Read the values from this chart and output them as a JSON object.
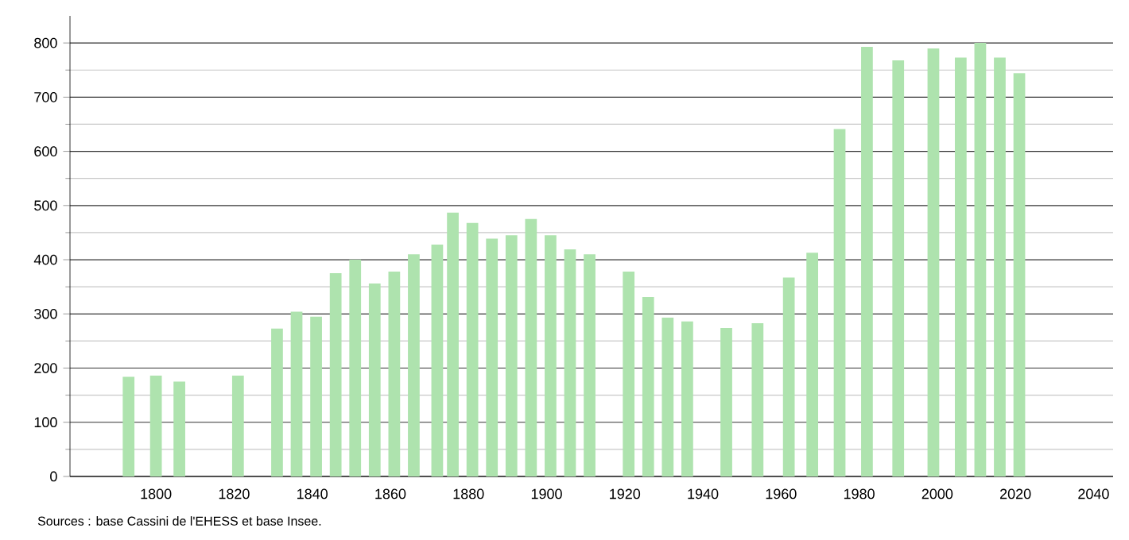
{
  "chart_data": {
    "type": "bar",
    "color": "#aee3ae",
    "x": [
      1793,
      1800,
      1806,
      1821,
      1831,
      1836,
      1841,
      1846,
      1851,
      1856,
      1861,
      1866,
      1872,
      1876,
      1881,
      1886,
      1891,
      1896,
      1901,
      1906,
      1911,
      1921,
      1926,
      1931,
      1936,
      1946,
      1954,
      1962,
      1968,
      1975,
      1982,
      1990,
      1999,
      2006,
      2011,
      2016,
      2021
    ],
    "values": [
      184,
      186,
      175,
      186,
      273,
      304,
      295,
      375,
      400,
      356,
      378,
      410,
      428,
      487,
      468,
      439,
      445,
      475,
      445,
      419,
      410,
      378,
      331,
      293,
      286,
      274,
      283,
      367,
      413,
      641,
      793,
      768,
      790,
      773,
      800,
      773,
      744
    ],
    "xlim": [
      1778,
      2045
    ],
    "ylim": [
      0,
      850
    ],
    "xticks": [
      1800,
      1820,
      1840,
      1860,
      1880,
      1900,
      1920,
      1940,
      1960,
      1980,
      2000,
      2020,
      2040
    ],
    "yticks": [
      0,
      100,
      200,
      300,
      400,
      500,
      600,
      700,
      800
    ],
    "grid": "y",
    "annotations": [
      "Sources : base Cassini de l'EHESS et base Insee."
    ]
  }
}
